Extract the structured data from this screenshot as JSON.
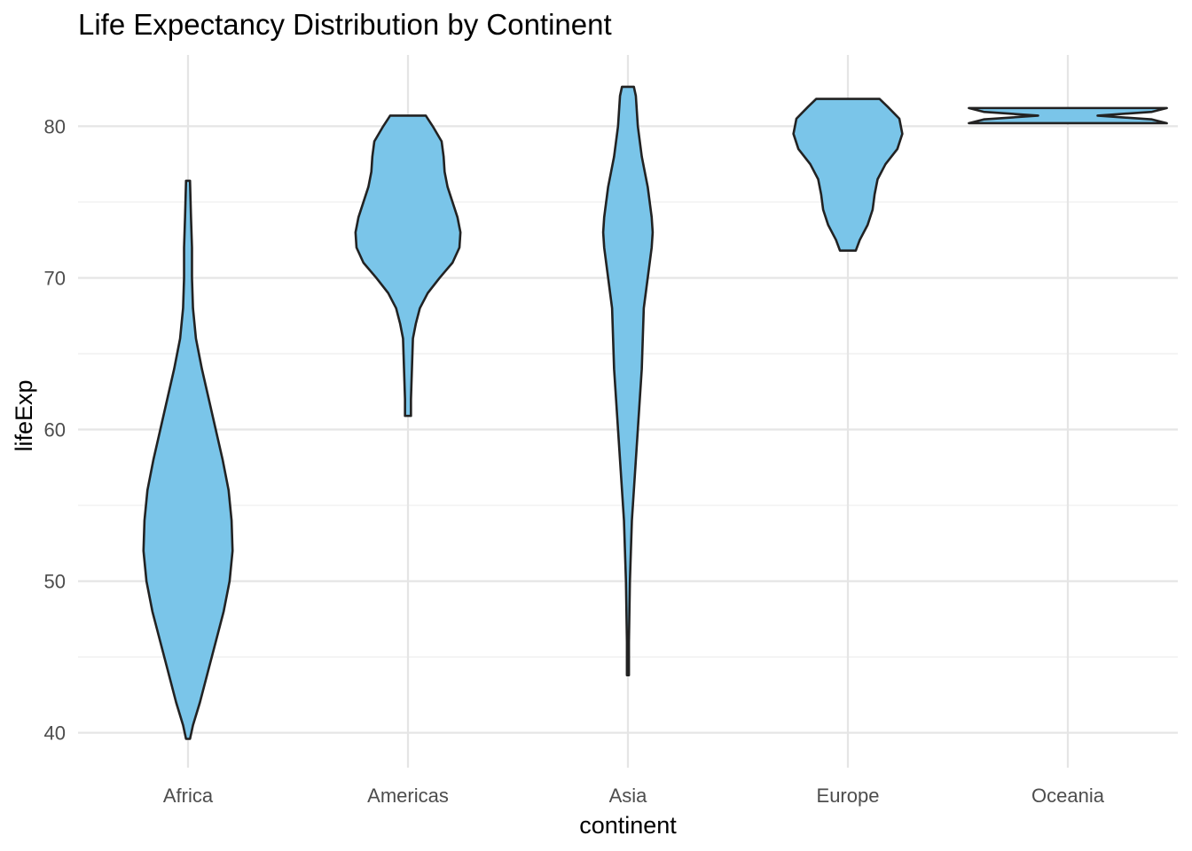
{
  "chart_data": {
    "type": "violin",
    "title": "Life Expectancy Distribution by Continent",
    "xlabel": "continent",
    "ylabel": "lifeExp",
    "categories": [
      "Africa",
      "Americas",
      "Asia",
      "Europe",
      "Oceania"
    ],
    "ylim": [
      37.7,
      84.7
    ],
    "yticks": [
      40,
      50,
      60,
      70,
      80
    ],
    "grid": true,
    "legend": "none",
    "fill_color": "#7AC5E9",
    "outline_color": "#222222",
    "violins": [
      {
        "category": "Africa",
        "min": 39.6,
        "max": 76.4,
        "profile": [
          [
            39.6,
            0.02
          ],
          [
            40.5,
            0.05
          ],
          [
            42,
            0.12
          ],
          [
            44,
            0.2
          ],
          [
            46,
            0.28
          ],
          [
            48,
            0.36
          ],
          [
            50,
            0.42
          ],
          [
            52,
            0.45
          ],
          [
            54,
            0.44
          ],
          [
            56,
            0.41
          ],
          [
            58,
            0.35
          ],
          [
            60,
            0.28
          ],
          [
            62,
            0.21
          ],
          [
            64,
            0.14
          ],
          [
            66,
            0.08
          ],
          [
            68,
            0.05
          ],
          [
            70,
            0.04
          ],
          [
            72,
            0.04
          ],
          [
            74,
            0.03
          ],
          [
            76.4,
            0.02
          ]
        ]
      },
      {
        "category": "Americas",
        "min": 60.9,
        "max": 80.7,
        "profile": [
          [
            60.9,
            0.03
          ],
          [
            62,
            0.03
          ],
          [
            64,
            0.04
          ],
          [
            66,
            0.05
          ],
          [
            67,
            0.08
          ],
          [
            68,
            0.12
          ],
          [
            69,
            0.2
          ],
          [
            70,
            0.32
          ],
          [
            71,
            0.45
          ],
          [
            72,
            0.52
          ],
          [
            73,
            0.53
          ],
          [
            74,
            0.5
          ],
          [
            75,
            0.45
          ],
          [
            76,
            0.4
          ],
          [
            77,
            0.37
          ],
          [
            78,
            0.36
          ],
          [
            79,
            0.34
          ],
          [
            80,
            0.25
          ],
          [
            80.7,
            0.18
          ]
        ]
      },
      {
        "category": "Asia",
        "min": 43.8,
        "max": 82.6,
        "profile": [
          [
            43.8,
            0.01
          ],
          [
            46,
            0.01
          ],
          [
            50,
            0.02
          ],
          [
            54,
            0.04
          ],
          [
            56,
            0.06
          ],
          [
            58,
            0.08
          ],
          [
            60,
            0.1
          ],
          [
            62,
            0.12
          ],
          [
            64,
            0.14
          ],
          [
            66,
            0.15
          ],
          [
            68,
            0.16
          ],
          [
            70,
            0.2
          ],
          [
            72,
            0.24
          ],
          [
            73,
            0.25
          ],
          [
            74,
            0.24
          ],
          [
            76,
            0.2
          ],
          [
            78,
            0.14
          ],
          [
            80,
            0.1
          ],
          [
            82,
            0.08
          ],
          [
            82.6,
            0.06
          ]
        ]
      },
      {
        "category": "Europe",
        "min": 71.8,
        "max": 81.8,
        "profile": [
          [
            71.8,
            0.08
          ],
          [
            72.5,
            0.12
          ],
          [
            73.5,
            0.2
          ],
          [
            74.5,
            0.25
          ],
          [
            75.5,
            0.27
          ],
          [
            76.5,
            0.3
          ],
          [
            77.5,
            0.38
          ],
          [
            78.5,
            0.5
          ],
          [
            79.5,
            0.55
          ],
          [
            80.5,
            0.52
          ],
          [
            81.3,
            0.4
          ],
          [
            81.8,
            0.32
          ]
        ]
      },
      {
        "category": "Oceania",
        "min": 80.2,
        "max": 81.2,
        "profile": [
          [
            80.2,
            1.0
          ],
          [
            80.45,
            0.85
          ],
          [
            80.7,
            0.3
          ],
          [
            80.95,
            0.85
          ],
          [
            81.2,
            1.0
          ]
        ]
      }
    ]
  }
}
